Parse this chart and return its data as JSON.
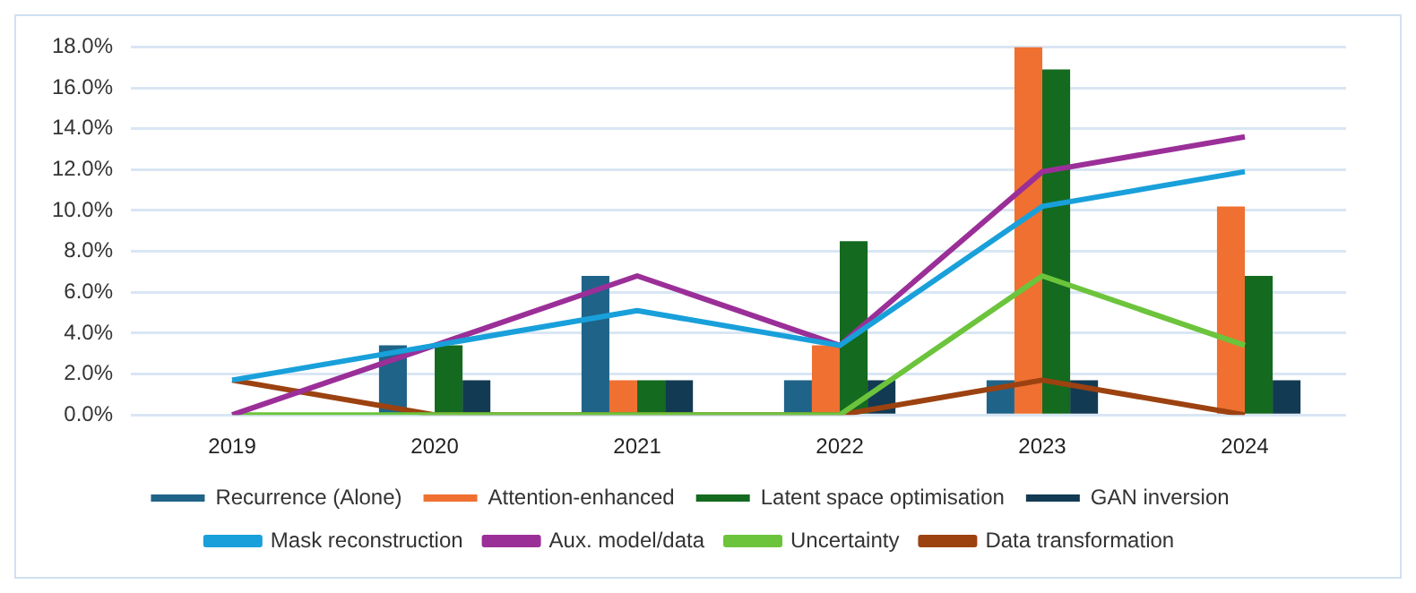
{
  "chart_data": {
    "type": "bar",
    "categories": [
      "2019",
      "2020",
      "2021",
      "2022",
      "2023",
      "2024"
    ],
    "series": [
      {
        "name": "Recurrence (Alone)",
        "color": "#1f6389",
        "values": [
          0,
          3.4,
          6.8,
          1.7,
          1.7,
          0
        ]
      },
      {
        "name": "Attention-enhanced",
        "color": "#ef7030",
        "values": [
          0,
          0,
          1.7,
          3.4,
          18.0,
          10.2
        ]
      },
      {
        "name": "Latent space optimisation",
        "color": "#146a1f",
        "values": [
          0,
          3.4,
          1.7,
          8.5,
          16.9,
          6.8
        ]
      },
      {
        "name": "GAN inversion",
        "color": "#133a53",
        "values": [
          0,
          1.7,
          1.7,
          1.7,
          1.7,
          1.7
        ]
      },
      {
        "name": "Mask reconstruction",
        "type": "line",
        "color": "#19a0da",
        "values": [
          1.7,
          3.4,
          5.1,
          3.4,
          10.2,
          11.9
        ]
      },
      {
        "name": "Aux. model/data",
        "type": "line",
        "color": "#9b2f98",
        "values": [
          0,
          3.4,
          6.8,
          3.4,
          11.9,
          13.6
        ]
      },
      {
        "name": "Uncertainty",
        "type": "line",
        "color": "#6cc43c",
        "values": [
          0,
          0,
          0,
          0,
          6.8,
          3.4
        ]
      },
      {
        "name": "Data transformation",
        "type": "line",
        "color": "#9c4211",
        "values": [
          1.7,
          0,
          0,
          0,
          1.7,
          0
        ]
      }
    ],
    "ylim": [
      0,
      18
    ],
    "yticks": [
      {
        "value": 0,
        "label": "0.0%"
      },
      {
        "value": 2,
        "label": "2.0%"
      },
      {
        "value": 4,
        "label": "4.0%"
      },
      {
        "value": 6,
        "label": "6.0%"
      },
      {
        "value": 8,
        "label": "8.0%"
      },
      {
        "value": 10,
        "label": "10.0%"
      },
      {
        "value": 12,
        "label": "12.0%"
      },
      {
        "value": 14,
        "label": "14.0%"
      },
      {
        "value": 16,
        "label": "16.0%"
      },
      {
        "value": 18,
        "label": "18.0%"
      }
    ],
    "grid": "y",
    "legend": "bottom",
    "marker": "none",
    "line_style": "solid"
  }
}
